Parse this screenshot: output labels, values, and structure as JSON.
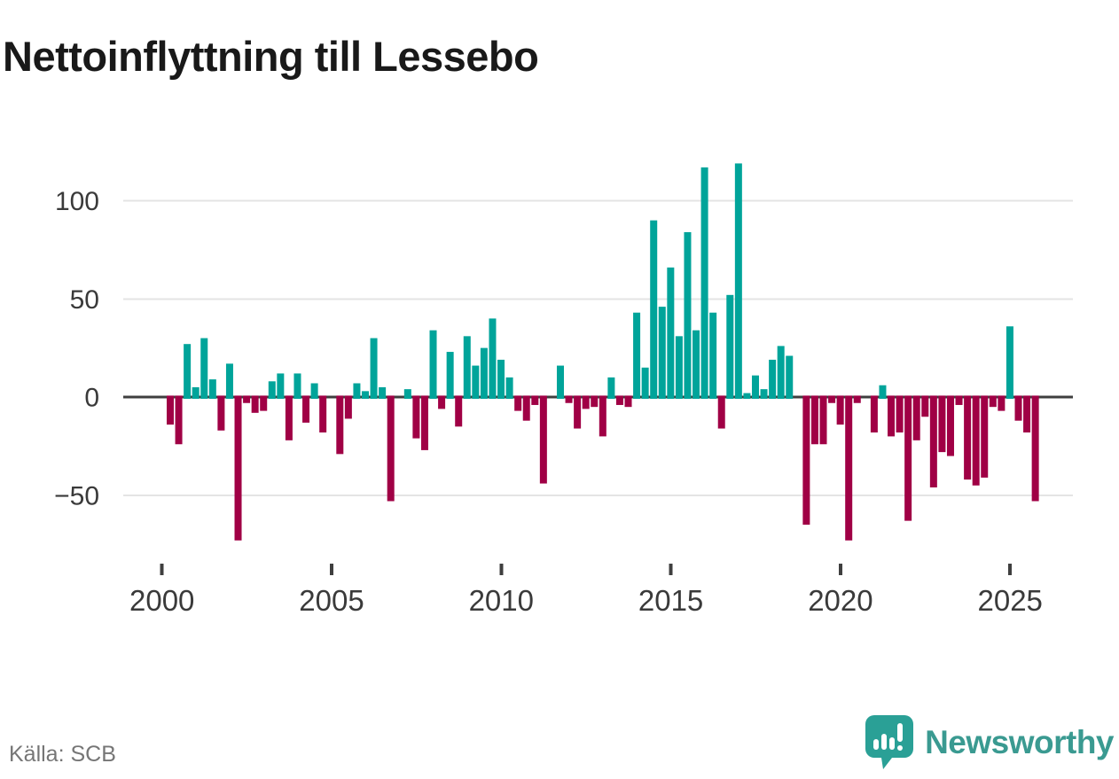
{
  "title": "Nettoinflyttning till Lessebo",
  "source": "Källa: SCB",
  "brand": {
    "name": "Newsworthy"
  },
  "colors": {
    "positive": "#00a49a",
    "negative": "#a00045",
    "grid": "#e4e4e4",
    "zero_line": "#3f3f3f",
    "axis_text": "#3a3a3a",
    "muted_text": "#767676",
    "brand_text": "#3a9a91",
    "brand_icon": "#2aa096"
  },
  "chart_data": {
    "type": "bar",
    "title": "Nettoinflyttning till Lessebo",
    "xlabel": "",
    "ylabel": "",
    "frequency": "quarterly",
    "grid": "horizontal",
    "ylim": [
      -80,
      125
    ],
    "yticks": [
      100,
      50,
      0,
      -50
    ],
    "ytick_labels": [
      "100",
      "50",
      "0",
      "−50"
    ],
    "xtick_labels": [
      "2000",
      "2005",
      "2010",
      "2015",
      "2020",
      "2025"
    ],
    "xtick_first_index": 0,
    "xtick_step_quarters": 20,
    "categories": [
      "2000K1",
      "2000K2",
      "2000K3",
      "2000K4",
      "2001K1",
      "2001K2",
      "2001K3",
      "2001K4",
      "2002K1",
      "2002K2",
      "2002K3",
      "2002K4",
      "2003K1",
      "2003K2",
      "2003K3",
      "2003K4",
      "2004K1",
      "2004K2",
      "2004K3",
      "2004K4",
      "2005K1",
      "2005K2",
      "2005K3",
      "2005K4",
      "2006K1",
      "2006K2",
      "2006K3",
      "2006K4",
      "2007K1",
      "2007K2",
      "2007K3",
      "2007K4",
      "2008K1",
      "2008K2",
      "2008K3",
      "2008K4",
      "2009K1",
      "2009K2",
      "2009K3",
      "2009K4",
      "2010K1",
      "2010K2",
      "2010K3",
      "2010K4",
      "2011K1",
      "2011K2",
      "2011K3",
      "2011K4",
      "2012K1",
      "2012K2",
      "2012K3",
      "2012K4",
      "2013K1",
      "2013K2",
      "2013K3",
      "2013K4",
      "2014K1",
      "2014K2",
      "2014K3",
      "2014K4",
      "2015K1",
      "2015K2",
      "2015K3",
      "2015K4",
      "2016K1",
      "2016K2",
      "2016K3",
      "2016K4",
      "2017K1",
      "2017K2",
      "2017K3",
      "2017K4",
      "2018K1",
      "2018K2",
      "2018K3",
      "2018K4",
      "2019K1",
      "2019K2",
      "2019K3",
      "2019K4",
      "2020K1",
      "2020K2",
      "2020K3",
      "2020K4",
      "2021K1",
      "2021K2",
      "2021K3",
      "2021K4",
      "2022K1",
      "2022K2",
      "2022K3",
      "2022K4",
      "2023K1",
      "2023K2",
      "2023K3",
      "2023K4",
      "2024K1",
      "2024K2",
      "2024K3",
      "2024K4",
      "2025K1",
      "2025K2",
      "2025K3"
    ],
    "values": [
      -14,
      -24,
      27,
      5,
      30,
      9,
      -17,
      17,
      -73,
      -3,
      -8,
      -7,
      8,
      12,
      -22,
      12,
      -13,
      7,
      -18,
      0,
      -29,
      -11,
      7,
      3,
      30,
      5,
      -53,
      0,
      4,
      -21,
      -27,
      34,
      -6,
      23,
      -15,
      31,
      16,
      25,
      40,
      19,
      10,
      -7,
      -12,
      -4,
      -44,
      0,
      16,
      -3,
      -16,
      -6,
      -5,
      -20,
      10,
      -4,
      -5,
      43,
      15,
      90,
      46,
      66,
      31,
      84,
      34,
      117,
      43,
      -16,
      52,
      119,
      2,
      11,
      4,
      19,
      26,
      21,
      0,
      -65,
      -24,
      -24,
      -3,
      -14,
      -73,
      -3,
      0,
      -18,
      6,
      -20,
      -18,
      -63,
      -22,
      -10,
      -46,
      -28,
      -30,
      -4,
      -42,
      -45,
      -41,
      -5,
      -7,
      36,
      -12,
      -18,
      -53
    ]
  }
}
